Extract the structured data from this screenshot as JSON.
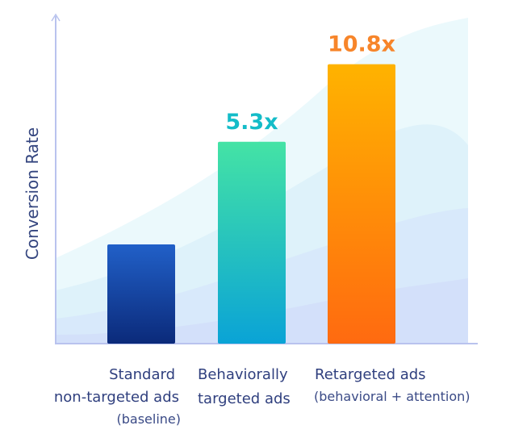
{
  "chart_data": {
    "type": "bar",
    "title": "",
    "xlabel": "",
    "ylabel": "Conversion Rate",
    "categories": [
      {
        "lines": [
          "Standard",
          "non-targeted ads",
          "(baseline)"
        ]
      },
      {
        "lines": [
          "Behaviorally",
          "targeted ads"
        ]
      },
      {
        "lines": [
          "Retargeted ads",
          "(behavioral + attention)"
        ]
      }
    ],
    "values": [
      1,
      5.3,
      10.8
    ],
    "value_labels": [
      "",
      "5.3x",
      "10.8x"
    ],
    "value_label_colors": [
      "#1d4fb8",
      "#14bcc8",
      "#f7852a"
    ],
    "bar_gradients": [
      [
        "#2160c8",
        "#0b2a7a"
      ],
      [
        "#44e3a5",
        "#0aa3d6"
      ],
      [
        "#ffb300",
        "#ff6a10"
      ]
    ],
    "grid": false,
    "legend": "none"
  }
}
